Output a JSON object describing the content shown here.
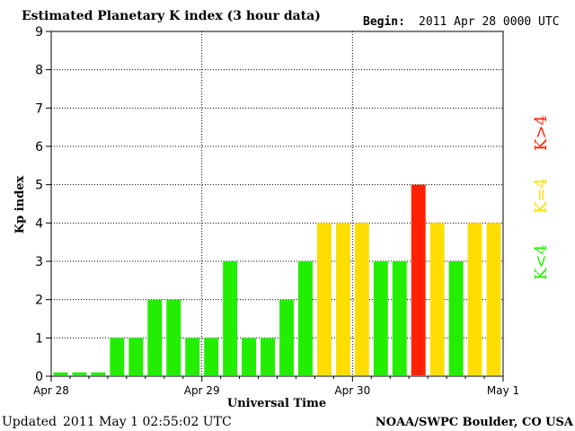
{
  "header": {
    "title": "Estimated Planetary K index (3 hour data)",
    "begin_label": "Begin:",
    "begin_value": "2011 Apr 28 0000 UTC"
  },
  "footer": {
    "updated_label": "Updated",
    "updated_value": "2011 May  1 02:55:02 UTC",
    "source": "NOAA/SWPC Boulder, CO USA"
  },
  "chart_data": {
    "type": "bar",
    "title": "Estimated Planetary K index (3 hour data)",
    "xlabel": "Universal Time",
    "ylabel": "Kp index",
    "ylim": [
      0,
      9
    ],
    "yticks": [
      "0",
      "1",
      "2",
      "3",
      "4",
      "5",
      "6",
      "7",
      "8",
      "9"
    ],
    "xticks": [
      "Apr 28",
      "Apr 29",
      "Apr 30",
      "May 1"
    ],
    "grid": true,
    "values": [
      0.1,
      0.1,
      0.1,
      1,
      1,
      2,
      2,
      1,
      1,
      3,
      1,
      1,
      2,
      3,
      4,
      4,
      4,
      3,
      3,
      5,
      4,
      3,
      4,
      4
    ],
    "colors": {
      "low": "#22ee00",
      "equal": "#ffdd00",
      "high": "#ff2200"
    },
    "legend": [
      {
        "label": "K<4",
        "color": "#22ee00"
      },
      {
        "label": "K=4",
        "color": "#ffdd00"
      },
      {
        "label": "K>4",
        "color": "#ff2200"
      }
    ],
    "legend_position": "right"
  }
}
